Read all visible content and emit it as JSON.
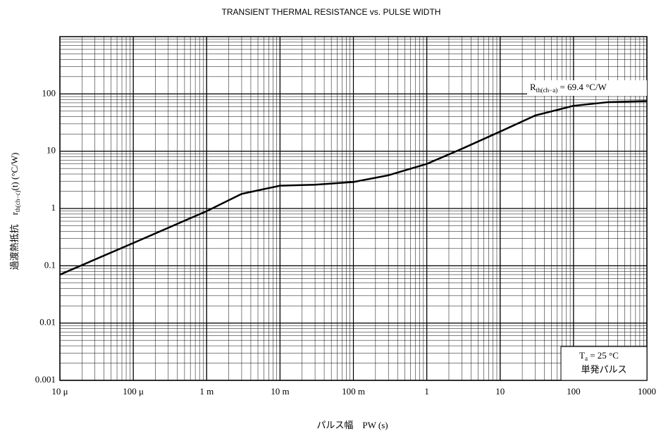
{
  "chart_data": {
    "type": "line",
    "title": "TRANSIENT THERMAL RESISTANCE vs. PULSE WIDTH",
    "x_label": "パルス幅　PW (s)",
    "y_label": [
      "過渡熱抵抗　r",
      "th(ch−c)",
      "(t)  (°C/W)"
    ],
    "annotation_rth": [
      "R",
      "th(ch−a)",
      " = 69.4 °C/W"
    ],
    "annotation_box": [
      "T",
      "a",
      " = 25 °C",
      "単発パルス"
    ],
    "log_x": true,
    "log_y": true,
    "grid": true,
    "color": "#000000",
    "xlim": [
      1e-05,
      1000
    ],
    "ylim": [
      0.001,
      1000
    ],
    "xticks": [
      {
        "value": 1e-05,
        "label": "10 μ"
      },
      {
        "value": 0.0001,
        "label": "100 μ"
      },
      {
        "value": 0.001,
        "label": "1 m"
      },
      {
        "value": 0.01,
        "label": "10 m"
      },
      {
        "value": 0.1,
        "label": "100 m"
      },
      1,
      10,
      100,
      1000
    ],
    "yticks": [
      0.001,
      0.01,
      0.1,
      1,
      10,
      100
    ],
    "x": [
      1e-05,
      0.0001,
      0.001,
      0.003,
      0.01,
      0.03,
      0.1,
      0.3,
      1,
      3,
      10,
      30,
      100,
      300,
      1000
    ],
    "values": [
      0.07,
      0.25,
      0.9,
      1.8,
      2.5,
      2.6,
      2.9,
      3.8,
      6,
      11,
      22,
      42,
      62,
      72,
      75
    ]
  }
}
